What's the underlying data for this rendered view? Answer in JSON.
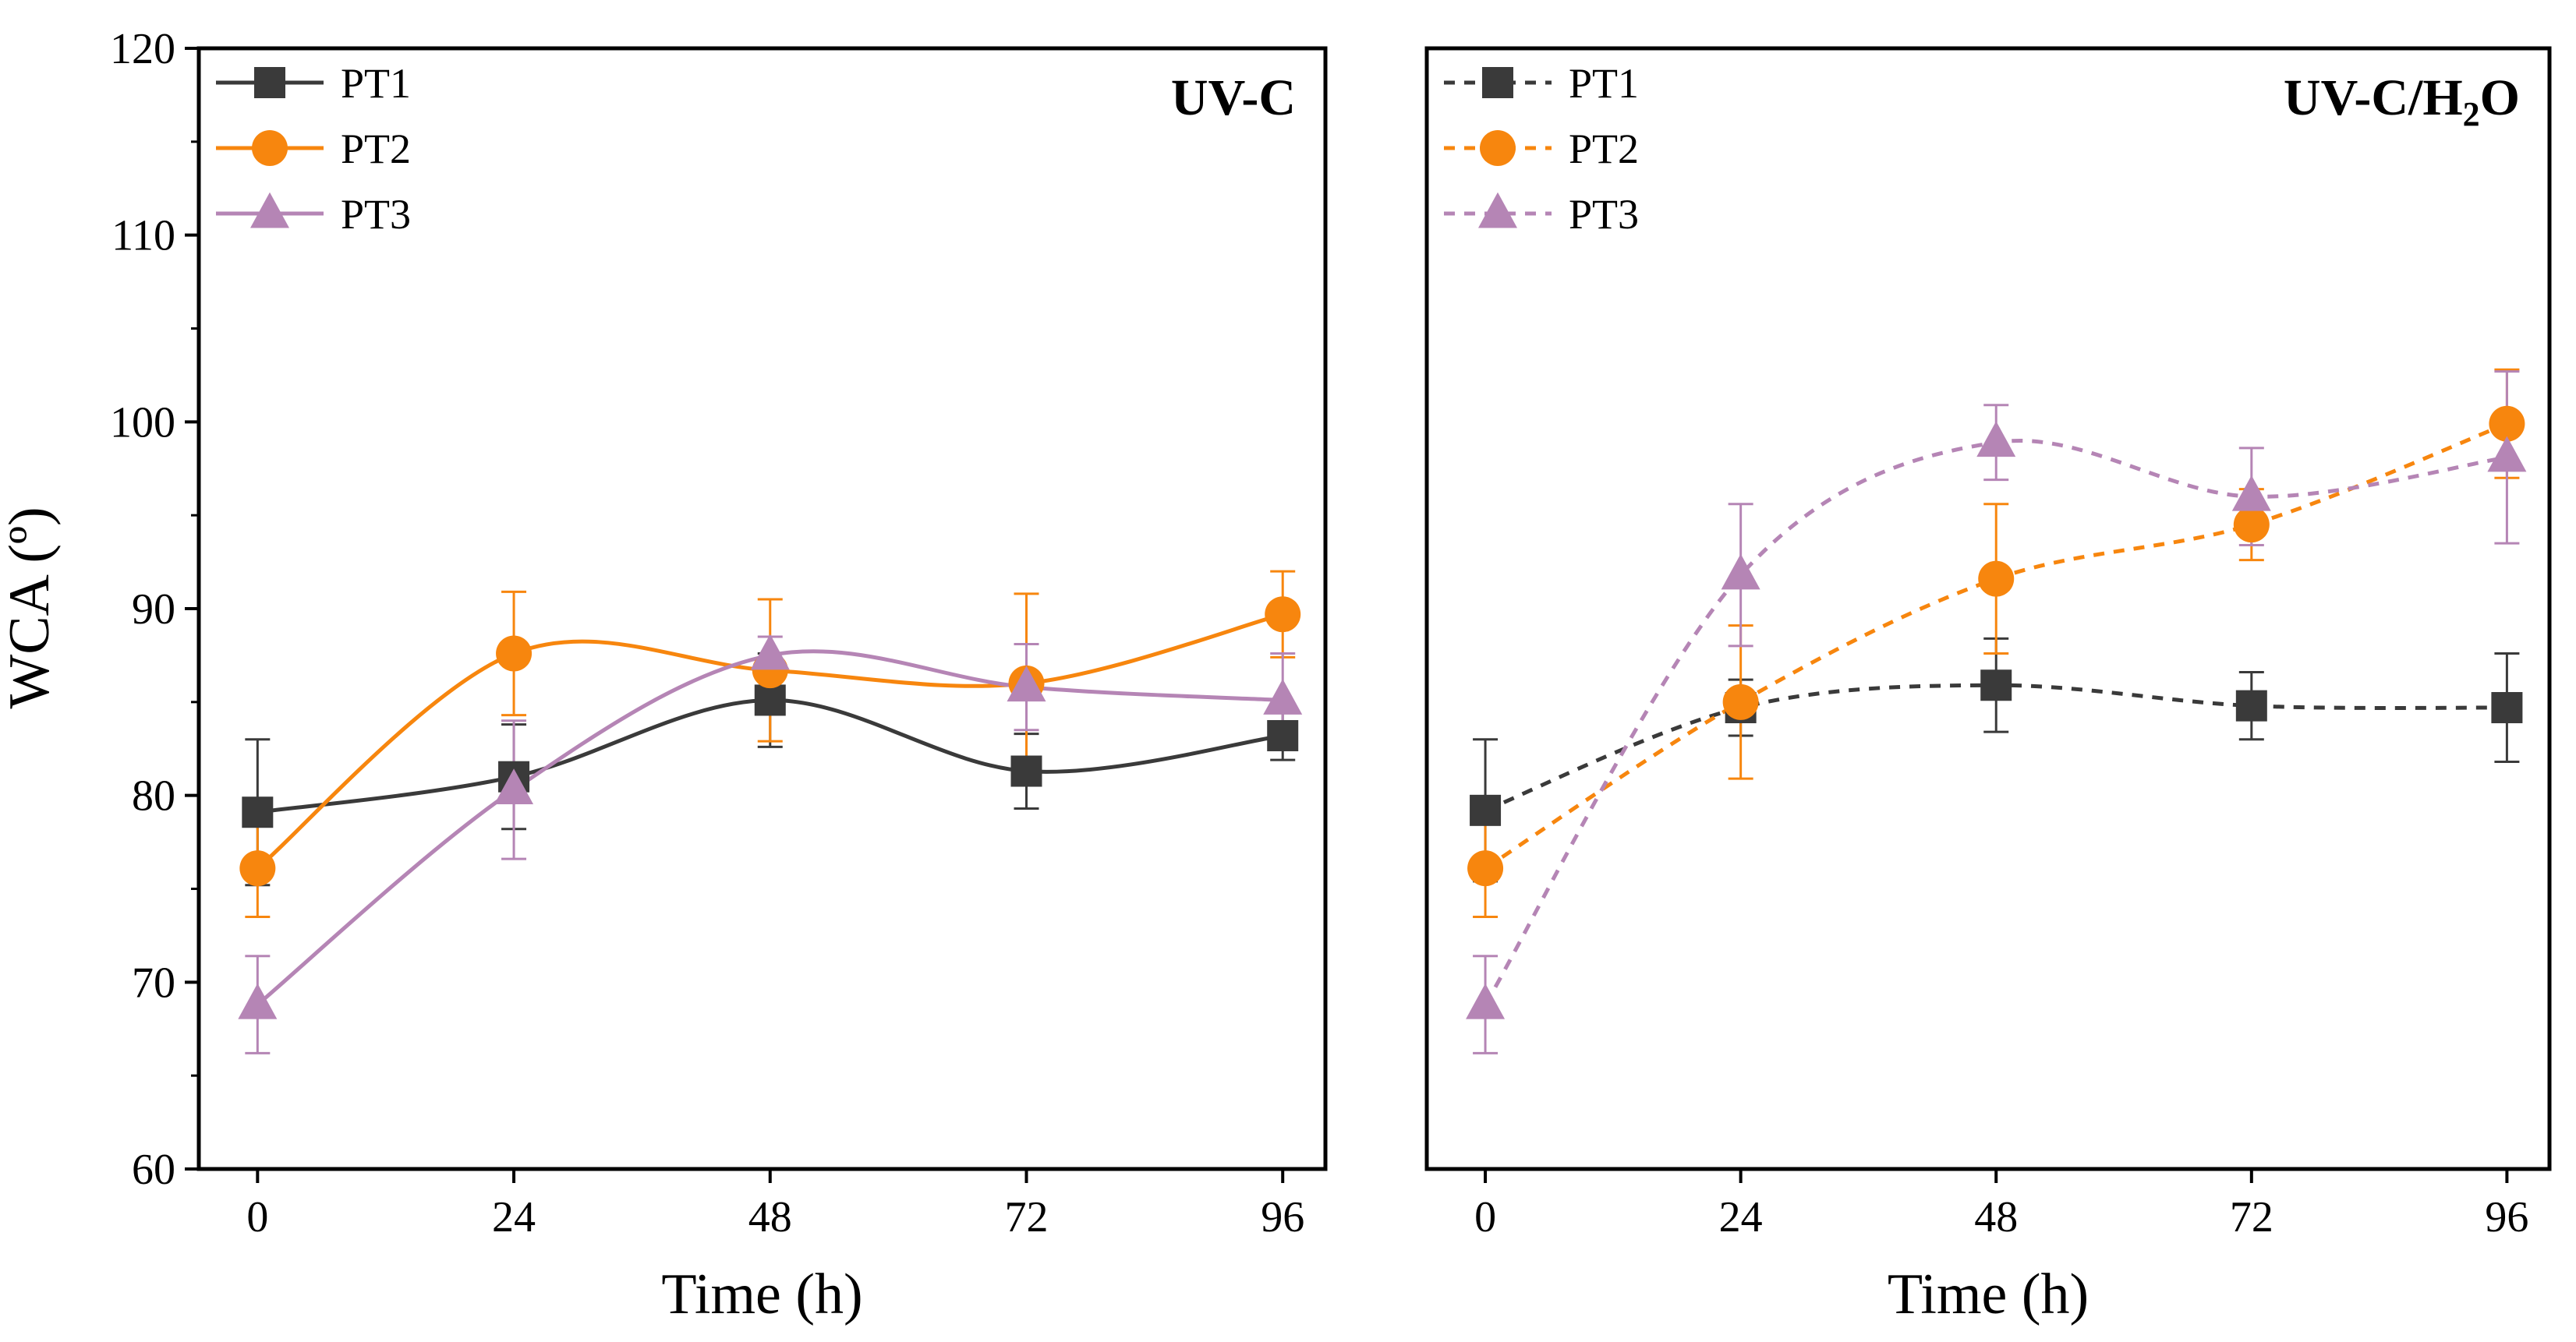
{
  "chart_data": [
    {
      "type": "line",
      "title": "UV-C",
      "title_sub": "",
      "title_tail": "",
      "xlabel": "Time (h)",
      "ylabel": "WCA (º)",
      "x": [
        0,
        24,
        48,
        72,
        96
      ],
      "xticks": [
        "0",
        "24",
        "48",
        "72",
        "96"
      ],
      "xlim": [
        -5.5,
        100
      ],
      "ylim": [
        60,
        120
      ],
      "yticks": [
        "60",
        "70",
        "80",
        "90",
        "100",
        "110",
        "120"
      ],
      "line_style": "solid",
      "legend_position": "top-left",
      "series": [
        {
          "name": "PT1",
          "marker": "square",
          "color": "#3a3a3a",
          "values": [
            79.1,
            81.0,
            85.1,
            81.3,
            83.2
          ],
          "errors": [
            3.9,
            2.8,
            2.5,
            2.0,
            1.3
          ]
        },
        {
          "name": "PT2",
          "marker": "circle",
          "color": "#f7860e",
          "values": [
            76.1,
            87.6,
            86.7,
            86.0,
            89.7
          ],
          "errors": [
            2.6,
            3.3,
            3.8,
            4.8,
            2.3
          ]
        },
        {
          "name": "PT3",
          "marker": "triangle",
          "color": "#b585b5",
          "values": [
            68.8,
            80.3,
            87.5,
            85.8,
            85.1
          ],
          "errors": [
            2.6,
            3.7,
            1.0,
            2.3,
            2.5
          ]
        }
      ]
    },
    {
      "type": "line",
      "title": "UV-C/H",
      "title_sub": "2",
      "title_tail": "O",
      "xlabel": "Time (h)",
      "ylabel": "",
      "x": [
        0,
        24,
        48,
        72,
        96
      ],
      "xticks": [
        "0",
        "24",
        "48",
        "72",
        "96"
      ],
      "xlim": [
        -5.5,
        100
      ],
      "ylim": [
        60,
        120
      ],
      "yticks": [],
      "line_style": "dashed",
      "legend_position": "top-left",
      "series": [
        {
          "name": "PT1",
          "marker": "square",
          "color": "#3a3a3a",
          "values": [
            79.2,
            84.7,
            85.9,
            84.8,
            84.7
          ],
          "errors": [
            3.8,
            1.5,
            2.5,
            1.8,
            2.9
          ]
        },
        {
          "name": "PT2",
          "marker": "circle",
          "color": "#f7860e",
          "values": [
            76.1,
            85.0,
            91.6,
            94.5,
            99.9
          ],
          "errors": [
            2.6,
            4.1,
            4.0,
            1.9,
            2.9
          ]
        },
        {
          "name": "PT3",
          "marker": "triangle",
          "color": "#b585b5",
          "values": [
            68.8,
            91.8,
            98.9,
            96.0,
            98.1
          ],
          "errors": [
            2.6,
            3.8,
            2.0,
            2.6,
            4.6
          ]
        }
      ]
    }
  ]
}
